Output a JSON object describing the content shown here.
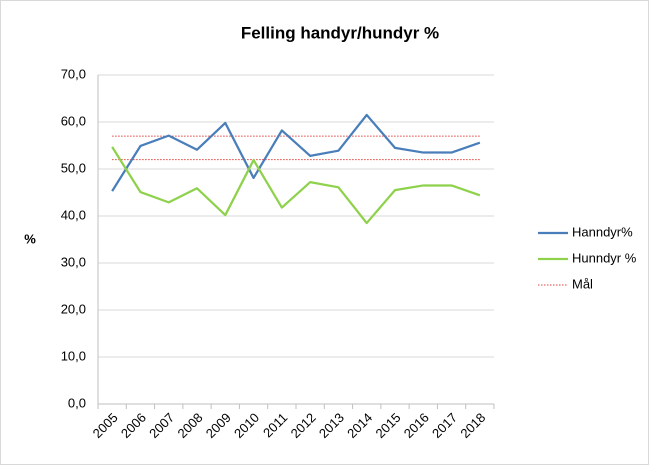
{
  "chart_data": {
    "type": "line",
    "title": "Felling handyr/hundyr %",
    "ylabel": "%",
    "categories": [
      "2005",
      "2006",
      "2007",
      "2008",
      "2009",
      "2010",
      "2011",
      "2012",
      "2013",
      "2014",
      "2015",
      "2016",
      "2017",
      "2018"
    ],
    "series": [
      {
        "name": "Hanndyr%",
        "color": "#4a7ebb",
        "values": [
          45.3,
          54.9,
          57.1,
          54.1,
          59.8,
          48.1,
          58.2,
          52.8,
          53.9,
          61.5,
          54.5,
          53.5,
          53.5,
          55.6
        ]
      },
      {
        "name": "Hunndyr %",
        "color": "#8ed14b",
        "values": [
          54.7,
          45.1,
          42.9,
          45.9,
          40.2,
          51.9,
          41.8,
          47.2,
          46.1,
          38.5,
          45.5,
          46.5,
          46.5,
          44.4
        ]
      }
    ],
    "reference_lines": {
      "name": "Mål",
      "color": "#e0403c",
      "values": [
        57,
        52
      ]
    },
    "ylim": [
      0,
      70
    ],
    "yticks": [
      {
        "value": 0,
        "label": "0,0"
      },
      {
        "value": 10,
        "label": "10,0"
      },
      {
        "value": 20,
        "label": "20,0"
      },
      {
        "value": 30,
        "label": "30,0"
      },
      {
        "value": 40,
        "label": "40,0"
      },
      {
        "value": 50,
        "label": "50,0"
      },
      {
        "value": 60,
        "label": "60,0"
      },
      {
        "value": 70,
        "label": "70,0"
      }
    ],
    "grid": true,
    "legend": "right"
  }
}
